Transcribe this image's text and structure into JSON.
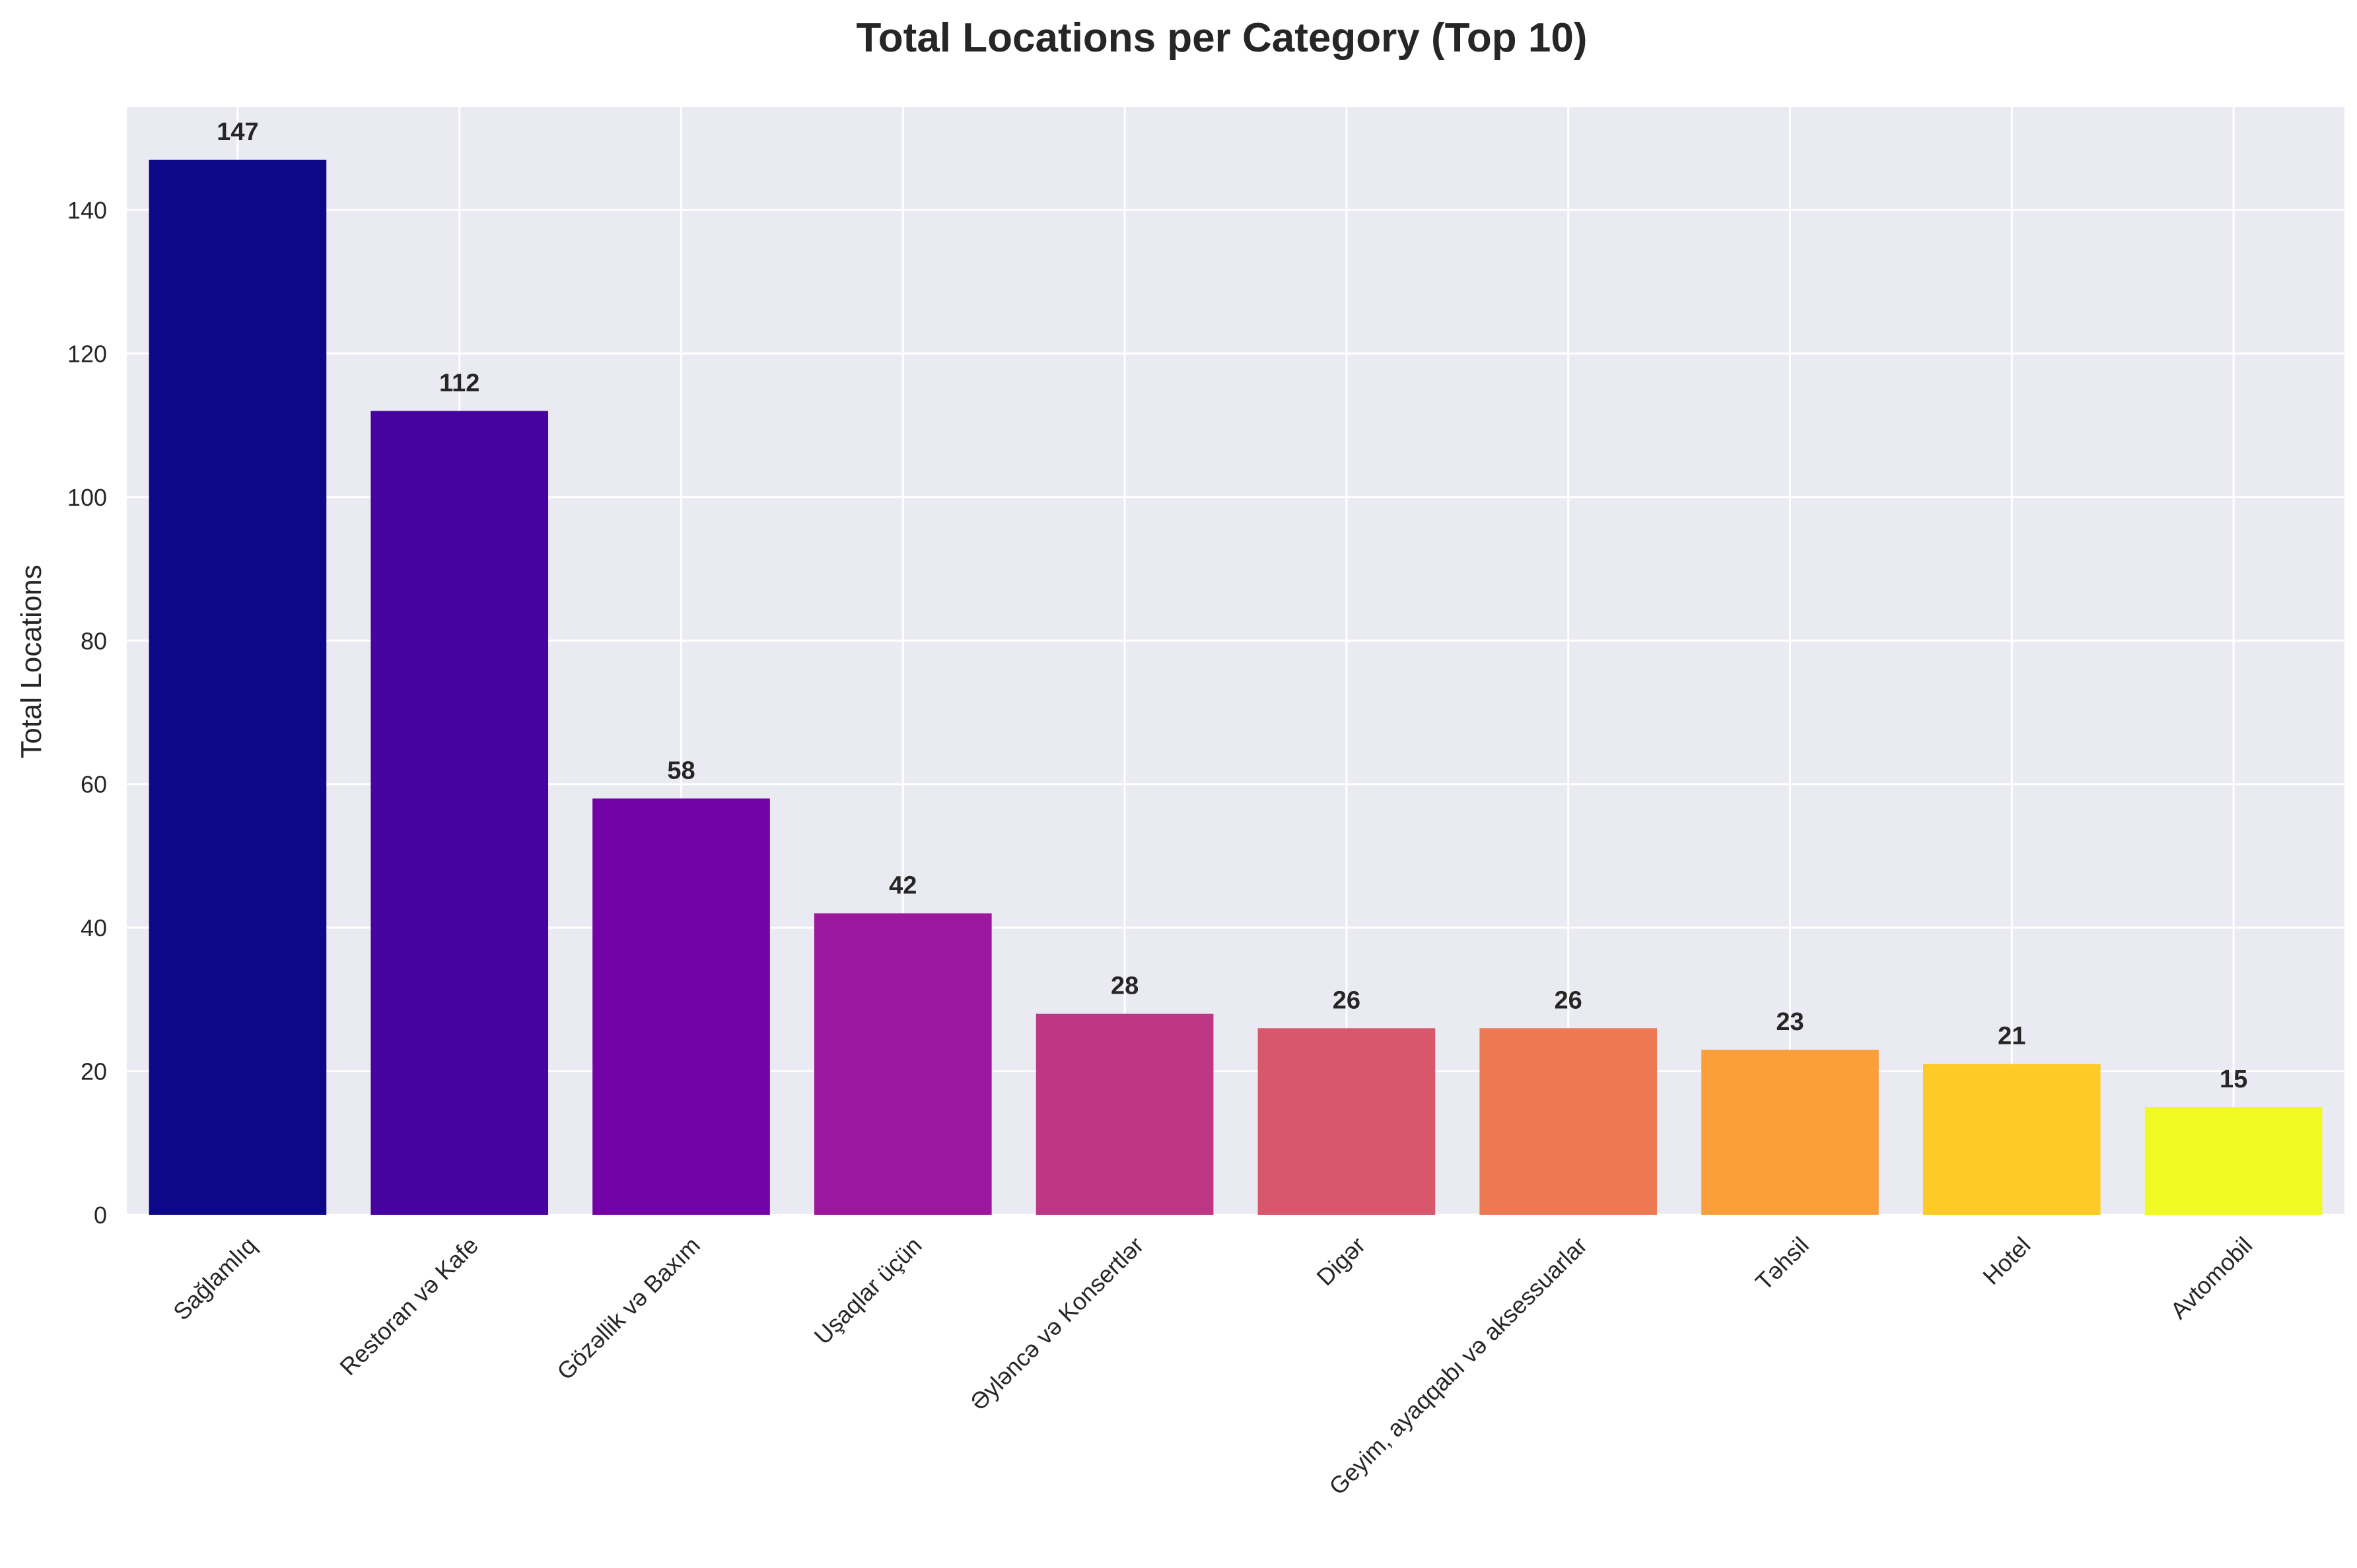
{
  "chart_data": {
    "type": "bar",
    "title": "Total Locations per Category (Top 10)",
    "xlabel": "",
    "ylabel": "Total Locations",
    "categories": [
      "Sağlamlıq",
      "Restoran və Kafe",
      "Gözəllik və Baxım",
      "Uşaqlar üçün",
      "Əyləncə və Konsertlər",
      "Digər",
      "Geyim, ayaqqabı və aksessuarlar",
      "Təhsil",
      "Hotel",
      "Avtomobil"
    ],
    "values": [
      147,
      112,
      58,
      42,
      28,
      26,
      26,
      23,
      21,
      15
    ],
    "data_labels": [
      "147",
      "112",
      "58",
      "42",
      "28",
      "26",
      "26",
      "23",
      "21",
      "15"
    ],
    "colors": [
      "#0d0887",
      "#46039f",
      "#7201a8",
      "#9c179e",
      "#bd3786",
      "#d8576b",
      "#ed7953",
      "#fb9f3a",
      "#fdca26",
      "#f0f921"
    ],
    "ylim": [
      0,
      154.35
    ],
    "yticks": [
      0,
      20,
      40,
      60,
      80,
      100,
      120,
      140
    ],
    "ytick_labels": [
      "0",
      "20",
      "40",
      "60",
      "80",
      "100",
      "120",
      "140"
    ],
    "grid": true,
    "legend": "none",
    "background_color": "#eaeaf2",
    "grid_color": "#ffffff"
  }
}
